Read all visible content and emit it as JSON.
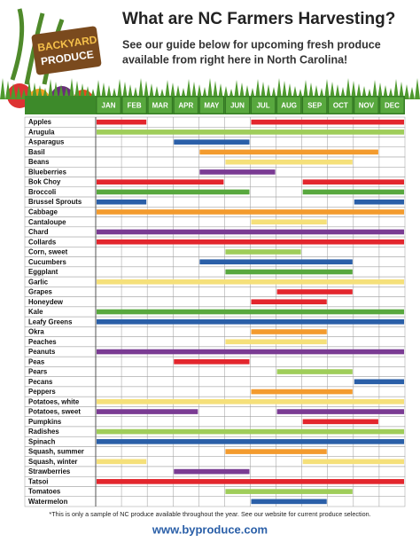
{
  "logo": {
    "line1": "BACKYARD",
    "line2": "PRODUCE"
  },
  "title": "What are NC Farmers Harvesting?",
  "subtitle": [
    "See our guide below for upcoming fresh produce",
    "available from right here in North Carolina!"
  ],
  "months": [
    "JAN",
    "FEB",
    "MAR",
    "APR",
    "MAY",
    "JUN",
    "JUL",
    "AUG",
    "SEP",
    "OCT",
    "NOV",
    "DEC"
  ],
  "rows": [
    {
      "name": "Apples",
      "color": "#e3262d",
      "spans": [
        [
          "JAN",
          "FEB"
        ],
        [
          "JUL",
          "DEC"
        ]
      ]
    },
    {
      "name": "Arugula",
      "color": "#9fcd5a",
      "spans": [
        [
          "JAN",
          "DEC"
        ]
      ]
    },
    {
      "name": "Asparagus",
      "color": "#2a5fa8",
      "spans": [
        [
          "APR",
          "JUN"
        ]
      ]
    },
    {
      "name": "Basil",
      "color": "#f39b2e",
      "spans": [
        [
          "MAY",
          "NOV"
        ]
      ]
    },
    {
      "name": "Beans",
      "color": "#f5e07a",
      "spans": [
        [
          "JUN",
          "OCT"
        ]
      ]
    },
    {
      "name": "Blueberries",
      "color": "#7a3b93",
      "spans": [
        [
          "MAY",
          "JUL"
        ]
      ]
    },
    {
      "name": "Bok Choy",
      "color": "#e3262d",
      "spans": [
        [
          "JAN",
          "MAY"
        ],
        [
          "SEP",
          "DEC"
        ]
      ]
    },
    {
      "name": "Broccoli",
      "color": "#58a83e",
      "spans": [
        [
          "JAN",
          "JUN"
        ],
        [
          "SEP",
          "DEC"
        ]
      ]
    },
    {
      "name": "Brussel Sprouts",
      "color": "#2a5fa8",
      "spans": [
        [
          "JAN",
          "FEB"
        ],
        [
          "NOV",
          "DEC"
        ]
      ]
    },
    {
      "name": "Cabbage",
      "color": "#f39b2e",
      "spans": [
        [
          "JAN",
          "DEC"
        ]
      ]
    },
    {
      "name": "Cantaloupe",
      "color": "#f5e07a",
      "spans": [
        [
          "JUL",
          "SEP"
        ]
      ]
    },
    {
      "name": "Chard",
      "color": "#7a3b93",
      "spans": [
        [
          "JAN",
          "DEC"
        ]
      ]
    },
    {
      "name": "Collards",
      "color": "#e3262d",
      "spans": [
        [
          "JAN",
          "DEC"
        ]
      ]
    },
    {
      "name": "Corn, sweet",
      "color": "#9fcd5a",
      "spans": [
        [
          "JUN",
          "AUG"
        ]
      ]
    },
    {
      "name": "Cucumbers",
      "color": "#2a5fa8",
      "spans": [
        [
          "MAY",
          "OCT"
        ]
      ]
    },
    {
      "name": "Eggplant",
      "color": "#58a83e",
      "spans": [
        [
          "JUN",
          "OCT"
        ]
      ]
    },
    {
      "name": "Garlic",
      "color": "#f5e07a",
      "spans": [
        [
          "JAN",
          "DEC"
        ]
      ]
    },
    {
      "name": "Grapes",
      "color": "#e3262d",
      "spans": [
        [
          "AUG",
          "OCT"
        ]
      ]
    },
    {
      "name": "Honeydew",
      "color": "#e3262d",
      "spans": [
        [
          "JUL",
          "SEP"
        ]
      ]
    },
    {
      "name": "Kale",
      "color": "#58a83e",
      "spans": [
        [
          "JAN",
          "DEC"
        ]
      ]
    },
    {
      "name": "Leafy Greens",
      "color": "#2a5fa8",
      "spans": [
        [
          "JAN",
          "DEC"
        ]
      ]
    },
    {
      "name": "Okra",
      "color": "#f39b2e",
      "spans": [
        [
          "JUL",
          "SEP"
        ]
      ]
    },
    {
      "name": "Peaches",
      "color": "#f5e07a",
      "spans": [
        [
          "JUN",
          "SEP"
        ]
      ]
    },
    {
      "name": "Peanuts",
      "color": "#7a3b93",
      "spans": [
        [
          "JAN",
          "DEC"
        ]
      ]
    },
    {
      "name": "Peas",
      "color": "#e3262d",
      "spans": [
        [
          "APR",
          "JUN"
        ]
      ]
    },
    {
      "name": "Pears",
      "color": "#9fcd5a",
      "spans": [
        [
          "AUG",
          "OCT"
        ]
      ]
    },
    {
      "name": "Pecans",
      "color": "#2a5fa8",
      "spans": [
        [
          "NOV",
          "DEC"
        ]
      ]
    },
    {
      "name": "Peppers",
      "color": "#f39b2e",
      "spans": [
        [
          "JUL",
          "OCT"
        ]
      ]
    },
    {
      "name": "Potatoes, white",
      "color": "#f5e07a",
      "spans": [
        [
          "JAN",
          "DEC"
        ]
      ]
    },
    {
      "name": "Potatoes, sweet",
      "color": "#7a3b93",
      "spans": [
        [
          "JAN",
          "APR"
        ],
        [
          "AUG",
          "DEC"
        ]
      ]
    },
    {
      "name": "Pumpkins",
      "color": "#e3262d",
      "spans": [
        [
          "SEP",
          "NOV"
        ]
      ]
    },
    {
      "name": "Radishes",
      "color": "#9fcd5a",
      "spans": [
        [
          "JAN",
          "DEC"
        ]
      ]
    },
    {
      "name": "Spinach",
      "color": "#2a5fa8",
      "spans": [
        [
          "JAN",
          "DEC"
        ]
      ]
    },
    {
      "name": "Squash, summer",
      "color": "#f39b2e",
      "spans": [
        [
          "JUN",
          "SEP"
        ]
      ]
    },
    {
      "name": "Squash, winter",
      "color": "#f5e07a",
      "spans": [
        [
          "JAN",
          "FEB"
        ],
        [
          "SEP",
          "DEC"
        ]
      ]
    },
    {
      "name": "Strawberries",
      "color": "#7a3b93",
      "spans": [
        [
          "APR",
          "JUN"
        ]
      ]
    },
    {
      "name": "Tatsoi",
      "color": "#e3262d",
      "spans": [
        [
          "JAN",
          "DEC"
        ]
      ]
    },
    {
      "name": "Tomatoes",
      "color": "#9fcd5a",
      "spans": [
        [
          "JUN",
          "OCT"
        ]
      ]
    },
    {
      "name": "Watermelon",
      "color": "#2a5fa8",
      "spans": [
        [
          "JUL",
          "SEP"
        ]
      ]
    }
  ],
  "footnote": "*This is only a sample of NC produce available throughout the year. See our website for current produce selection.",
  "website": "www.byproduce.com"
}
